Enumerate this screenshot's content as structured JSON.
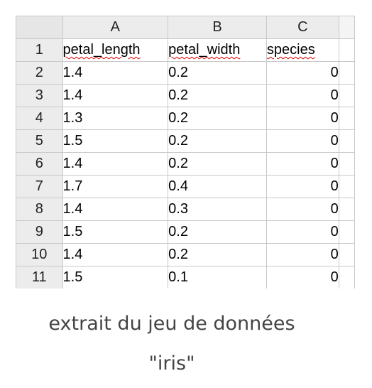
{
  "spreadsheet": {
    "column_headers": [
      "A",
      "B",
      "C"
    ],
    "header_row": {
      "row": "1",
      "cells": [
        "petal_length",
        "petal_width",
        "species"
      ]
    },
    "rows": [
      {
        "row": "2",
        "cells": [
          "1.4",
          "0.2",
          "0"
        ]
      },
      {
        "row": "3",
        "cells": [
          "1.4",
          "0.2",
          "0"
        ]
      },
      {
        "row": "4",
        "cells": [
          "1.3",
          "0.2",
          "0"
        ]
      },
      {
        "row": "5",
        "cells": [
          "1.5",
          "0.2",
          "0"
        ]
      },
      {
        "row": "6",
        "cells": [
          "1.4",
          "0.2",
          "0"
        ]
      },
      {
        "row": "7",
        "cells": [
          "1.7",
          "0.4",
          "0"
        ]
      },
      {
        "row": "8",
        "cells": [
          "1.4",
          "0.3",
          "0"
        ]
      },
      {
        "row": "9",
        "cells": [
          "1.5",
          "0.2",
          "0"
        ]
      },
      {
        "row": "10",
        "cells": [
          "1.4",
          "0.2",
          "0"
        ]
      },
      {
        "row": "11",
        "cells": [
          "1.5",
          "0.1",
          "0"
        ]
      }
    ],
    "spellcheck_underline_color": "#e00000",
    "header_background": "#ececec"
  },
  "caption": {
    "line1": "extrait du jeu de données",
    "line2": "\"iris\""
  }
}
